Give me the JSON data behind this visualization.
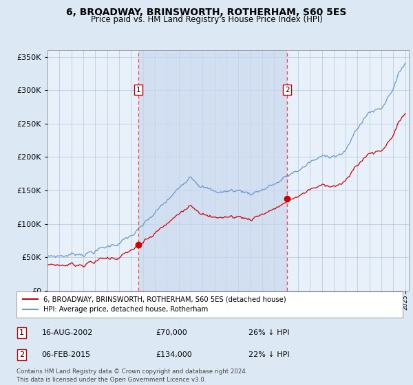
{
  "title": "6, BROADWAY, BRINSWORTH, ROTHERHAM, S60 5ES",
  "subtitle": "Price paid vs. HM Land Registry's House Price Index (HPI)",
  "legend_line1": "6, BROADWAY, BRINSWORTH, ROTHERHAM, S60 5ES (detached house)",
  "legend_line2": "HPI: Average price, detached house, Rotherham",
  "annotation1_label": "1",
  "annotation1_date": "16-AUG-2002",
  "annotation1_price": "£70,000",
  "annotation1_hpi": "26% ↓ HPI",
  "annotation2_label": "2",
  "annotation2_date": "06-FEB-2015",
  "annotation2_price": "£134,000",
  "annotation2_hpi": "22% ↓ HPI",
  "footer": "Contains HM Land Registry data © Crown copyright and database right 2024.\nThis data is licensed under the Open Government Licence v3.0.",
  "bg_color": "#dce9f5",
  "plot_bg_color": "#e8f0fa",
  "shade_color": "#c8d8ee",
  "red_color": "#cc0000",
  "blue_color": "#6699cc",
  "vline_color": "#ff4444",
  "grid_color": "#b0c4de",
  "ylim": [
    0,
    360000
  ],
  "yticks": [
    0,
    50000,
    100000,
    150000,
    200000,
    250000,
    300000,
    350000
  ],
  "year_start": 1995,
  "year_end": 2025,
  "sale1_year": 2002.6,
  "sale2_year": 2015.1,
  "sale1_price": 70000,
  "sale2_price": 134000
}
